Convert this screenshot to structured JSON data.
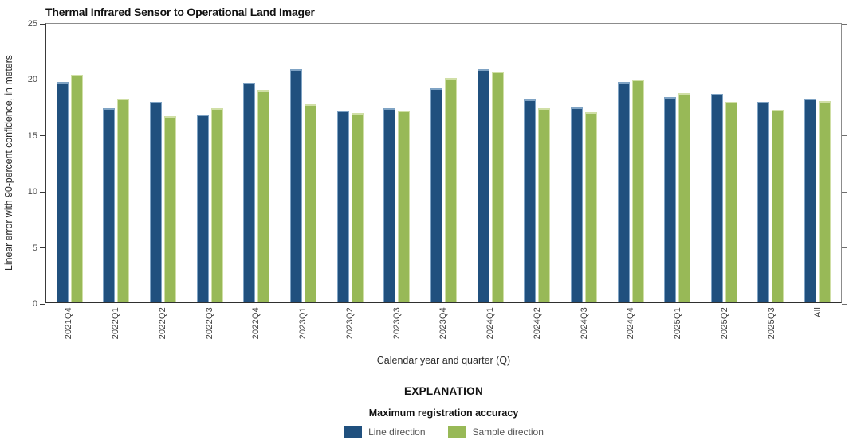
{
  "chart_data": {
    "type": "bar",
    "title": "Thermal Infrared Sensor to Operational Land Imager",
    "xlabel": "Calendar year and quarter (Q)",
    "ylabel": "Linear error with 90-percent confidence, in meters",
    "ylim": [
      0,
      25
    ],
    "yticks": [
      0,
      5,
      10,
      15,
      20,
      25
    ],
    "grid": false,
    "legend_position": "bottom-center",
    "categories": [
      "2021Q4",
      "2022Q1",
      "2022Q2",
      "2022Q3",
      "2022Q4",
      "2023Q1",
      "2023Q2",
      "2023Q3",
      "2023Q4",
      "2024Q1",
      "2024Q2",
      "2024Q3",
      "2024Q4",
      "2025Q1",
      "2025Q2",
      "2025Q3",
      "All"
    ],
    "series": [
      {
        "name": "Line direction",
        "color": "#20507e",
        "edge_color": "#7fa3c4",
        "values": [
          19.7,
          17.3,
          17.9,
          16.8,
          19.6,
          20.8,
          17.1,
          17.3,
          19.1,
          20.8,
          18.1,
          17.4,
          19.7,
          18.3,
          18.6,
          17.9,
          18.2
        ]
      },
      {
        "name": "Sample direction",
        "color": "#98b957",
        "edge_color": "#d0dfa6",
        "values": [
          20.3,
          18.2,
          16.6,
          17.3,
          19.0,
          17.7,
          16.9,
          17.1,
          20.0,
          20.6,
          17.3,
          17.0,
          19.9,
          18.7,
          17.9,
          17.2,
          18.0
        ]
      }
    ]
  },
  "explanation": {
    "heading": "EXPLANATION",
    "subheading": "Maximum registration accuracy"
  }
}
